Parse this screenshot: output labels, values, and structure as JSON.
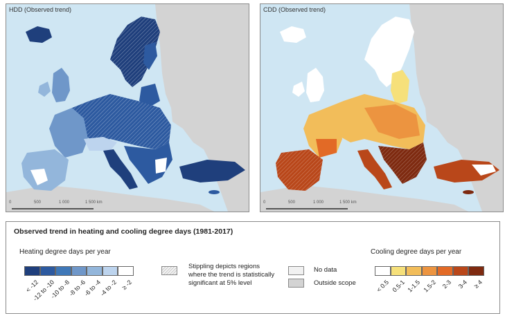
{
  "maps": {
    "hdd": {
      "title": "HDD (Observed trend)"
    },
    "cdd": {
      "title": "CDD (Observed trend)"
    },
    "scale_labels": [
      "0",
      "500",
      "1 000",
      "1 500 km"
    ]
  },
  "legend": {
    "title": "Observed trend in heating and cooling degree days (1981-2017)",
    "hdd": {
      "title": "Heating degree days per year",
      "classes": [
        {
          "label": "< -12",
          "color": "#1f3f7c"
        },
        {
          "label": "-12 to -10",
          "color": "#2d5aa0"
        },
        {
          "label": "-10 to -8",
          "color": "#3f78b8"
        },
        {
          "label": "-8 to -6",
          "color": "#6f97c9"
        },
        {
          "label": "-6 to -4",
          "color": "#93b6db"
        },
        {
          "label": "-4 to -2",
          "color": "#bdd4ee"
        },
        {
          "label": "≥ -2",
          "color": "#ffffff"
        }
      ]
    },
    "stippling": "Stippling depicts regions where the trend is statistically significant at 5% level",
    "no_data": {
      "label": "No data",
      "color": "#f1f1f1"
    },
    "outside_scope": {
      "label": "Outside scope",
      "color": "#d3d3d3"
    },
    "cdd": {
      "title": "Cooling degree days per year",
      "classes": [
        {
          "label": "< 0.5",
          "color": "#ffffff"
        },
        {
          "label": "0.5-1",
          "color": "#f6e07a"
        },
        {
          "label": "1-1.5",
          "color": "#f2bd5a"
        },
        {
          "label": "1.5-2",
          "color": "#ec9440"
        },
        {
          "label": "2-3",
          "color": "#e26a26"
        },
        {
          "label": "3-4",
          "color": "#b9471a"
        },
        {
          "label": "≥ 4",
          "color": "#7e2a10"
        }
      ]
    }
  },
  "colors": {
    "sea": "#cfe6f3",
    "outside_land": "#d3d3d3"
  }
}
